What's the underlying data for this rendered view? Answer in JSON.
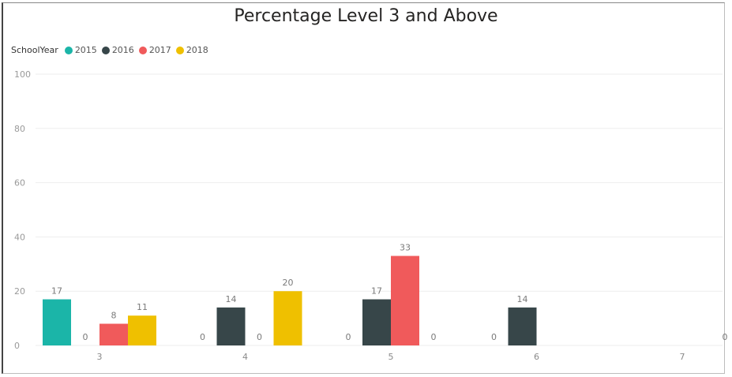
{
  "chart_data": {
    "type": "bar",
    "title": "Percentage Level 3 and Above",
    "legend_title": "SchoolYear",
    "legend_position": "top-left",
    "categories": [
      "3",
      "4",
      "5",
      "6",
      "7"
    ],
    "series": [
      {
        "name": "2015",
        "color": "#1bb5a8",
        "values": [
          17,
          0,
          0,
          0,
          null
        ]
      },
      {
        "name": "2016",
        "color": "#374649",
        "values": [
          0,
          14,
          17,
          14,
          null
        ]
      },
      {
        "name": "2017",
        "color": "#f05a5b",
        "values": [
          8,
          0,
          33,
          null,
          null
        ]
      },
      {
        "name": "2018",
        "color": "#efc000",
        "values": [
          11,
          20,
          0,
          null,
          0
        ]
      }
    ],
    "ylim": [
      0,
      100
    ],
    "yticks": [
      0,
      20,
      40,
      60,
      80,
      100
    ],
    "grid": true,
    "xlabel": "",
    "ylabel": ""
  }
}
